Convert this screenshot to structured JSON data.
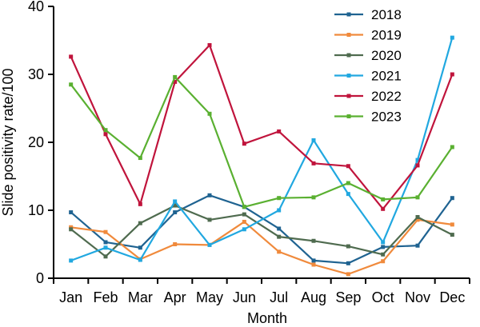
{
  "chart_data": {
    "type": "line",
    "xlabel": "Month",
    "ylabel": "Slide positivity rate/100",
    "categories": [
      "Jan",
      "Feb",
      "Mar",
      "Apr",
      "May",
      "Jun",
      "Jul",
      "Aug",
      "Sep",
      "Oct",
      "Nov",
      "Dec"
    ],
    "ylim": [
      0,
      40
    ],
    "yticks": [
      0,
      10,
      20,
      30,
      40
    ],
    "grid": false,
    "legend_position": "top-right",
    "series": [
      {
        "name": "2018",
        "color": "#1f6391",
        "values": [
          9.7,
          5.3,
          4.5,
          9.7,
          12.2,
          10.5,
          7.3,
          2.6,
          2.2,
          4.6,
          4.8,
          11.8
        ]
      },
      {
        "name": "2019",
        "color": "#f08a3c",
        "values": [
          7.5,
          6.8,
          2.8,
          5.0,
          4.9,
          8.3,
          3.9,
          2.0,
          0.6,
          2.5,
          8.6,
          7.9
        ]
      },
      {
        "name": "2020",
        "color": "#4f6b4f",
        "values": [
          7.2,
          3.2,
          8.1,
          10.7,
          8.6,
          9.4,
          6.1,
          5.5,
          4.7,
          3.5,
          9.0,
          6.4
        ]
      },
      {
        "name": "2021",
        "color": "#21a8e0",
        "values": [
          2.6,
          4.5,
          2.7,
          11.3,
          4.9,
          7.2,
          10.0,
          20.3,
          12.4,
          5.3,
          17.4,
          35.4
        ]
      },
      {
        "name": "2022",
        "color": "#c0143c",
        "values": [
          32.6,
          21.2,
          10.9,
          28.9,
          34.3,
          19.8,
          21.6,
          16.9,
          16.5,
          10.2,
          16.6,
          30.0
        ]
      },
      {
        "name": "2023",
        "color": "#5ab031",
        "values": [
          28.5,
          21.8,
          17.7,
          29.6,
          24.2,
          10.5,
          11.8,
          11.9,
          14.0,
          11.6,
          11.9,
          19.3
        ]
      }
    ]
  }
}
